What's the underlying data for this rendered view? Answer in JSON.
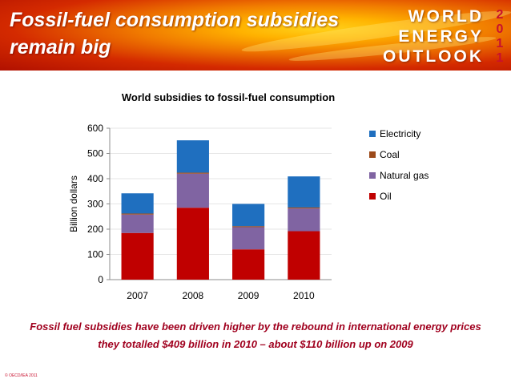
{
  "header": {
    "title": "Fossil-fuel consumption subsidies remain big",
    "brand_lines": [
      "WORLD",
      "ENERGY",
      "OUTLOOK"
    ],
    "year_digits": [
      "2",
      "0",
      "1",
      "1"
    ]
  },
  "chart_data": {
    "type": "bar",
    "stacked": true,
    "title": "World subsidies to fossil-fuel consumption",
    "ylabel": "Billion dollars",
    "xlabel": "",
    "ylim": [
      0,
      600
    ],
    "yticks": [
      0,
      100,
      200,
      300,
      400,
      500,
      600
    ],
    "categories": [
      "2007",
      "2008",
      "2009",
      "2010"
    ],
    "series": [
      {
        "name": "Oil",
        "color": "#c00000",
        "values": [
          185,
          285,
          120,
          192
        ]
      },
      {
        "name": "Natural gas",
        "color": "#8064a2",
        "values": [
          73,
          135,
          88,
          90
        ]
      },
      {
        "name": "Coal",
        "color": "#9c4a1a",
        "values": [
          4,
          4,
          4,
          4
        ]
      },
      {
        "name": "Electricity",
        "color": "#1f6fbf",
        "values": [
          80,
          128,
          88,
          123
        ]
      }
    ],
    "legend_order": [
      "Electricity",
      "Coal",
      "Natural gas",
      "Oil"
    ],
    "legend_position": "right",
    "grid": true
  },
  "caption": {
    "line1": "Fossil fuel subsidies have been driven higher by the rebound in international energy prices",
    "line2": "they totalled $409 billion in 2010 – about $110 billion up on 2009"
  },
  "footer": {
    "copyright": "© OECD/IEA 2011"
  },
  "colors": {
    "caption": "#a0001e",
    "year": "#c8102e"
  }
}
